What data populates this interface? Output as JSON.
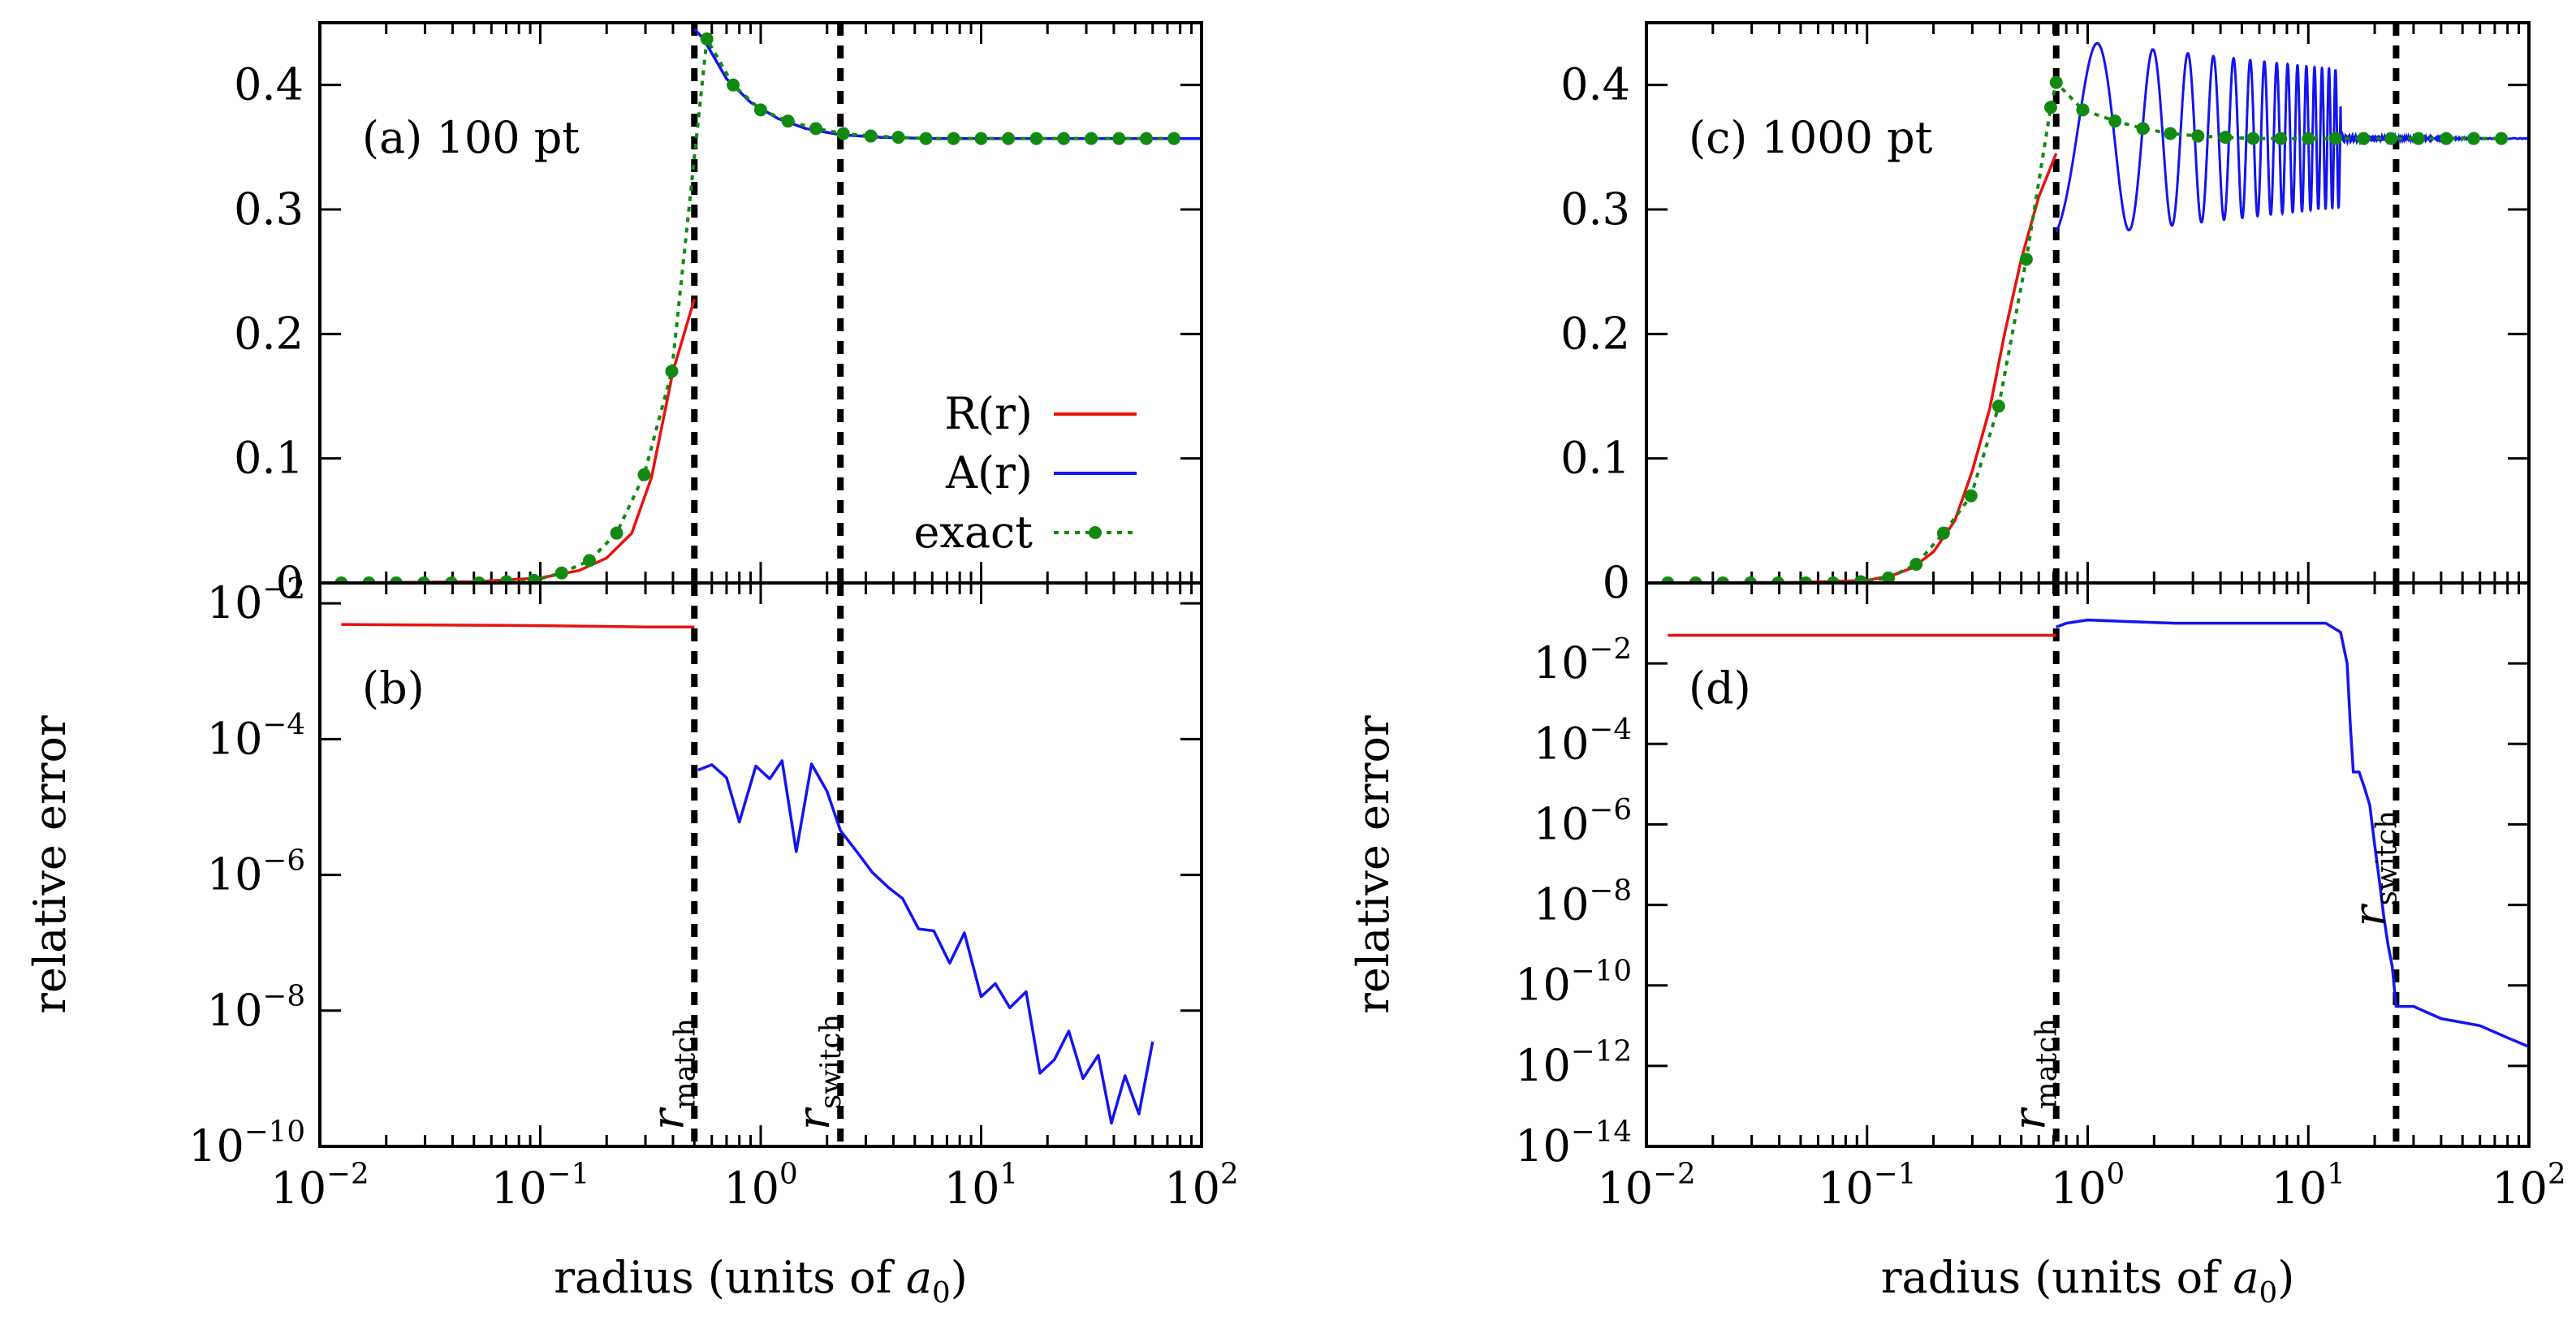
{
  "figure": {
    "xlabel": "radius (units of a0)",
    "xlabel_parts": {
      "prefix": "radius (units of ",
      "var": "a",
      "sub": "0",
      "suffix": ")"
    },
    "ylabel_bottom": "relative error"
  },
  "legend": {
    "position": "top-right of panel (a) lower half",
    "entries": [
      {
        "label": "R(r)",
        "color": "#e8120e",
        "style": "solid"
      },
      {
        "label": "A(r)",
        "color": "#1414f0",
        "style": "solid"
      },
      {
        "label": "exact",
        "color": "#128a12",
        "style": "dotted-with-points"
      }
    ]
  },
  "chart_data": [
    {
      "panel": "a",
      "type": "line",
      "title": "(a) 100 pt",
      "xscale": "log",
      "xlim": [
        0.01,
        100
      ],
      "ylim": [
        0,
        0.45
      ],
      "xticks": [
        0.01,
        0.1,
        1,
        10,
        100
      ],
      "xtick_labels": [
        {
          "b": "10",
          "e": "−2"
        },
        {
          "b": "10",
          "e": "−1"
        },
        {
          "b": "10",
          "e": "0"
        },
        {
          "b": "10",
          "e": "1"
        },
        {
          "b": "10",
          "e": "2"
        }
      ],
      "yticks": [
        0,
        0.1,
        0.2,
        0.3,
        0.4
      ],
      "ytick_labels": [
        "0",
        "0.1",
        "0.2",
        "0.3",
        "0.4"
      ],
      "vlines": [
        {
          "x": 0.5,
          "label": "r",
          "sub": "match"
        },
        {
          "x": 2.3,
          "label": "r",
          "sub": "switch"
        }
      ],
      "series": [
        {
          "name": "R(r)",
          "color": "#e8120e",
          "style": "solid",
          "x": [
            0.012,
            0.05,
            0.1,
            0.15,
            0.2,
            0.26,
            0.32,
            0.4,
            0.5
          ],
          "y": [
            0,
            0.001,
            0.004,
            0.01,
            0.02,
            0.04,
            0.085,
            0.17,
            0.228
          ]
        },
        {
          "name": "A(r)",
          "color": "#1414f0",
          "style": "solid",
          "x": [
            0.5,
            0.55,
            0.7,
            0.9,
            1.2,
            1.6,
            2.3,
            3.5,
            6,
            10,
            20,
            50,
            100
          ],
          "y": [
            0.445,
            0.437,
            0.405,
            0.386,
            0.373,
            0.365,
            0.36,
            0.358,
            0.357,
            0.357,
            0.357,
            0.357,
            0.357
          ]
        },
        {
          "name": "exact",
          "color": "#128a12",
          "style": "points",
          "x": [
            0.0125,
            0.0167,
            0.0222,
            0.0296,
            0.0395,
            0.0527,
            0.0702,
            0.0936,
            0.125,
            0.167,
            0.222,
            0.296,
            0.395,
            0.57,
            0.75,
            1.0,
            1.33,
            1.78,
            2.37,
            3.16,
            4.21,
            5.62,
            7.5,
            10,
            13.3,
            17.8,
            23.7,
            31.6,
            42.2,
            56.2,
            75
          ],
          "y": [
            0,
            0,
            0,
            0,
            0,
            0,
            0.001,
            0.002,
            0.008,
            0.018,
            0.04,
            0.087,
            0.17,
            0.437,
            0.4,
            0.38,
            0.371,
            0.365,
            0.361,
            0.359,
            0.358,
            0.357,
            0.357,
            0.357,
            0.357,
            0.357,
            0.357,
            0.357,
            0.357,
            0.357,
            0.357
          ]
        }
      ]
    },
    {
      "panel": "b",
      "type": "line",
      "title": "(b)",
      "xscale": "log",
      "yscale": "log",
      "xlim": [
        0.01,
        100
      ],
      "ylim": [
        1e-10,
        0.02
      ],
      "ylabel": "relative error",
      "yticks": [
        1e-10,
        1e-08,
        1e-06,
        0.0001,
        0.01
      ],
      "ytick_labels": [
        {
          "b": "10",
          "e": "−10"
        },
        {
          "b": "10",
          "e": "−8"
        },
        {
          "b": "10",
          "e": "−6"
        },
        {
          "b": "10",
          "e": "−4"
        },
        {
          "b": "10",
          "e": "−2"
        }
      ],
      "xticks": [
        0.01,
        0.1,
        1,
        10,
        100
      ],
      "xtick_labels": [
        {
          "b": "10",
          "e": "−2"
        },
        {
          "b": "10",
          "e": "−1"
        },
        {
          "b": "10",
          "e": "0"
        },
        {
          "b": "10",
          "e": "1"
        },
        {
          "b": "10",
          "e": "2"
        }
      ],
      "vlines": [
        {
          "x": 0.5,
          "label": "r",
          "sub": "match"
        },
        {
          "x": 2.3,
          "label": "r",
          "sub": "switch"
        }
      ],
      "series": [
        {
          "name": "R(r)",
          "color": "#e8120e",
          "style": "solid",
          "x": [
            0.0125,
            0.03,
            0.1,
            0.3,
            0.5
          ],
          "y": [
            0.0049,
            0.0048,
            0.0047,
            0.0045,
            0.0045
          ]
        },
        {
          "name": "A(r)",
          "color": "#1414f0",
          "style": "solid",
          "x": [
            0.52,
            0.6,
            0.7,
            0.8,
            0.95,
            1.1,
            1.25,
            1.45,
            1.7,
            2.0,
            2.3,
            2.7,
            3.2,
            3.8,
            4.4,
            5.2,
            6.1,
            7.2,
            8.4,
            10,
            11.6,
            13.5,
            16,
            18.5,
            21.5,
            25,
            29,
            34,
            39,
            45,
            52,
            60
          ],
          "y": [
            3.5e-05,
            4.2e-05,
            2.7e-05,
            6e-06,
            4e-05,
            2.6e-05,
            4.8e-05,
            2.2e-06,
            4.3e-05,
            1.7e-05,
            4.5e-06,
            2.3e-06,
            1.1e-06,
            6.5e-07,
            4.5e-07,
            1.6e-07,
            1.5e-07,
            5e-08,
            1.4e-07,
            1.6e-08,
            2.5e-08,
            1.1e-08,
            1.9e-08,
            1.2e-09,
            1.9e-09,
            5e-09,
            1e-09,
            2.2e-09,
            2.2e-10,
            1.1e-09,
            3e-10,
            3.5e-09
          ]
        }
      ]
    },
    {
      "panel": "c",
      "type": "line",
      "title": "(c) 1000 pt",
      "xscale": "log",
      "xlim": [
        0.01,
        100
      ],
      "ylim": [
        0,
        0.45
      ],
      "xticks": [
        0.01,
        0.1,
        1,
        10,
        100
      ],
      "xtick_labels": [
        {
          "b": "10",
          "e": "−2"
        },
        {
          "b": "10",
          "e": "−1"
        },
        {
          "b": "10",
          "e": "0"
        },
        {
          "b": "10",
          "e": "1"
        },
        {
          "b": "10",
          "e": "2"
        }
      ],
      "yticks": [
        0,
        0.1,
        0.2,
        0.3,
        0.4
      ],
      "ytick_labels": [
        "0",
        "0.1",
        "0.2",
        "0.3",
        "0.4"
      ],
      "vlines": [
        {
          "x": 0.72,
          "label": "r",
          "sub": "match"
        },
        {
          "x": 25,
          "label": "r",
          "sub": "switch"
        }
      ],
      "series": [
        {
          "name": "R(r)",
          "color": "#e8120e",
          "style": "solid",
          "x": [
            0.0125,
            0.05,
            0.1,
            0.13,
            0.16,
            0.2,
            0.25,
            0.3,
            0.36,
            0.42,
            0.5,
            0.6,
            0.72
          ],
          "y": [
            0,
            0.0005,
            0.002,
            0.006,
            0.012,
            0.025,
            0.05,
            0.09,
            0.14,
            0.2,
            0.26,
            0.31,
            0.345
          ]
        },
        {
          "name": "A(r)",
          "color": "#1414f0",
          "style": "oscillating",
          "x_start": 0.72,
          "x_osc_end": 14,
          "x_end": 100,
          "center": 0.357,
          "amplitude_start": 0.08,
          "amplitude_end": 0.055,
          "amplitude_tail": 0.003
        },
        {
          "name": "exact",
          "color": "#128a12",
          "style": "points",
          "x": [
            0.0125,
            0.0167,
            0.0222,
            0.0296,
            0.0395,
            0.0527,
            0.0702,
            0.0936,
            0.125,
            0.167,
            0.222,
            0.296,
            0.395,
            0.527,
            0.68,
            0.72,
            0.95,
            1.33,
            1.78,
            2.37,
            3.16,
            4.21,
            5.62,
            7.5,
            10,
            13.3,
            17.8,
            23.7,
            31.6,
            42.2,
            56.2,
            75
          ],
          "y": [
            0,
            0,
            0,
            0,
            0,
            0,
            0,
            0.001,
            0.004,
            0.015,
            0.04,
            0.07,
            0.142,
            0.26,
            0.382,
            0.402,
            0.38,
            0.371,
            0.365,
            0.361,
            0.359,
            0.358,
            0.357,
            0.357,
            0.357,
            0.357,
            0.357,
            0.357,
            0.357,
            0.357,
            0.357,
            0.357
          ]
        }
      ]
    },
    {
      "panel": "d",
      "type": "line",
      "title": "(d)",
      "xscale": "log",
      "yscale": "log",
      "xlim": [
        0.01,
        100
      ],
      "ylim": [
        1e-14,
        1
      ],
      "ylabel": "relative error",
      "yticks": [
        1e-14,
        1e-12,
        1e-10,
        1e-08,
        1e-06,
        0.0001,
        0.01
      ],
      "ytick_labels": [
        {
          "b": "10",
          "e": "−14"
        },
        {
          "b": "10",
          "e": "−12"
        },
        {
          "b": "10",
          "e": "−10"
        },
        {
          "b": "10",
          "e": "−8"
        },
        {
          "b": "10",
          "e": "−6"
        },
        {
          "b": "10",
          "e": "−4"
        },
        {
          "b": "10",
          "e": "−2"
        }
      ],
      "xticks": [
        0.01,
        0.1,
        1,
        10,
        100
      ],
      "xtick_labels": [
        {
          "b": "10",
          "e": "−2"
        },
        {
          "b": "10",
          "e": "−1"
        },
        {
          "b": "10",
          "e": "0"
        },
        {
          "b": "10",
          "e": "1"
        },
        {
          "b": "10",
          "e": "2"
        }
      ],
      "vlines": [
        {
          "x": 0.72,
          "label": "r",
          "sub": "match"
        },
        {
          "x": 25,
          "label": "r",
          "sub": "switch"
        }
      ],
      "series": [
        {
          "name": "R(r)",
          "color": "#e8120e",
          "style": "solid",
          "x": [
            0.0125,
            0.72
          ],
          "y": [
            0.05,
            0.05
          ]
        },
        {
          "name": "A(r)",
          "color": "#1414f0",
          "style": "solid",
          "x": [
            0.72,
            0.8,
            1.0,
            1.5,
            2.5,
            4,
            6,
            9,
            12,
            14,
            15,
            15.5,
            16,
            17,
            18,
            19,
            20,
            21,
            22,
            23,
            24,
            25,
            30,
            40,
            60,
            80,
            100
          ],
          "y": [
            0.08,
            0.1,
            0.12,
            0.11,
            0.1,
            0.1,
            0.1,
            0.1,
            0.1,
            0.06,
            0.01,
            0.0003,
            2e-05,
            2e-05,
            8e-06,
            3e-06,
            3e-07,
            4e-08,
            5e-09,
            1e-09,
            3e-10,
            3e-11,
            3e-11,
            1.5e-11,
            1e-11,
            5e-12,
            3e-12
          ]
        }
      ]
    }
  ]
}
